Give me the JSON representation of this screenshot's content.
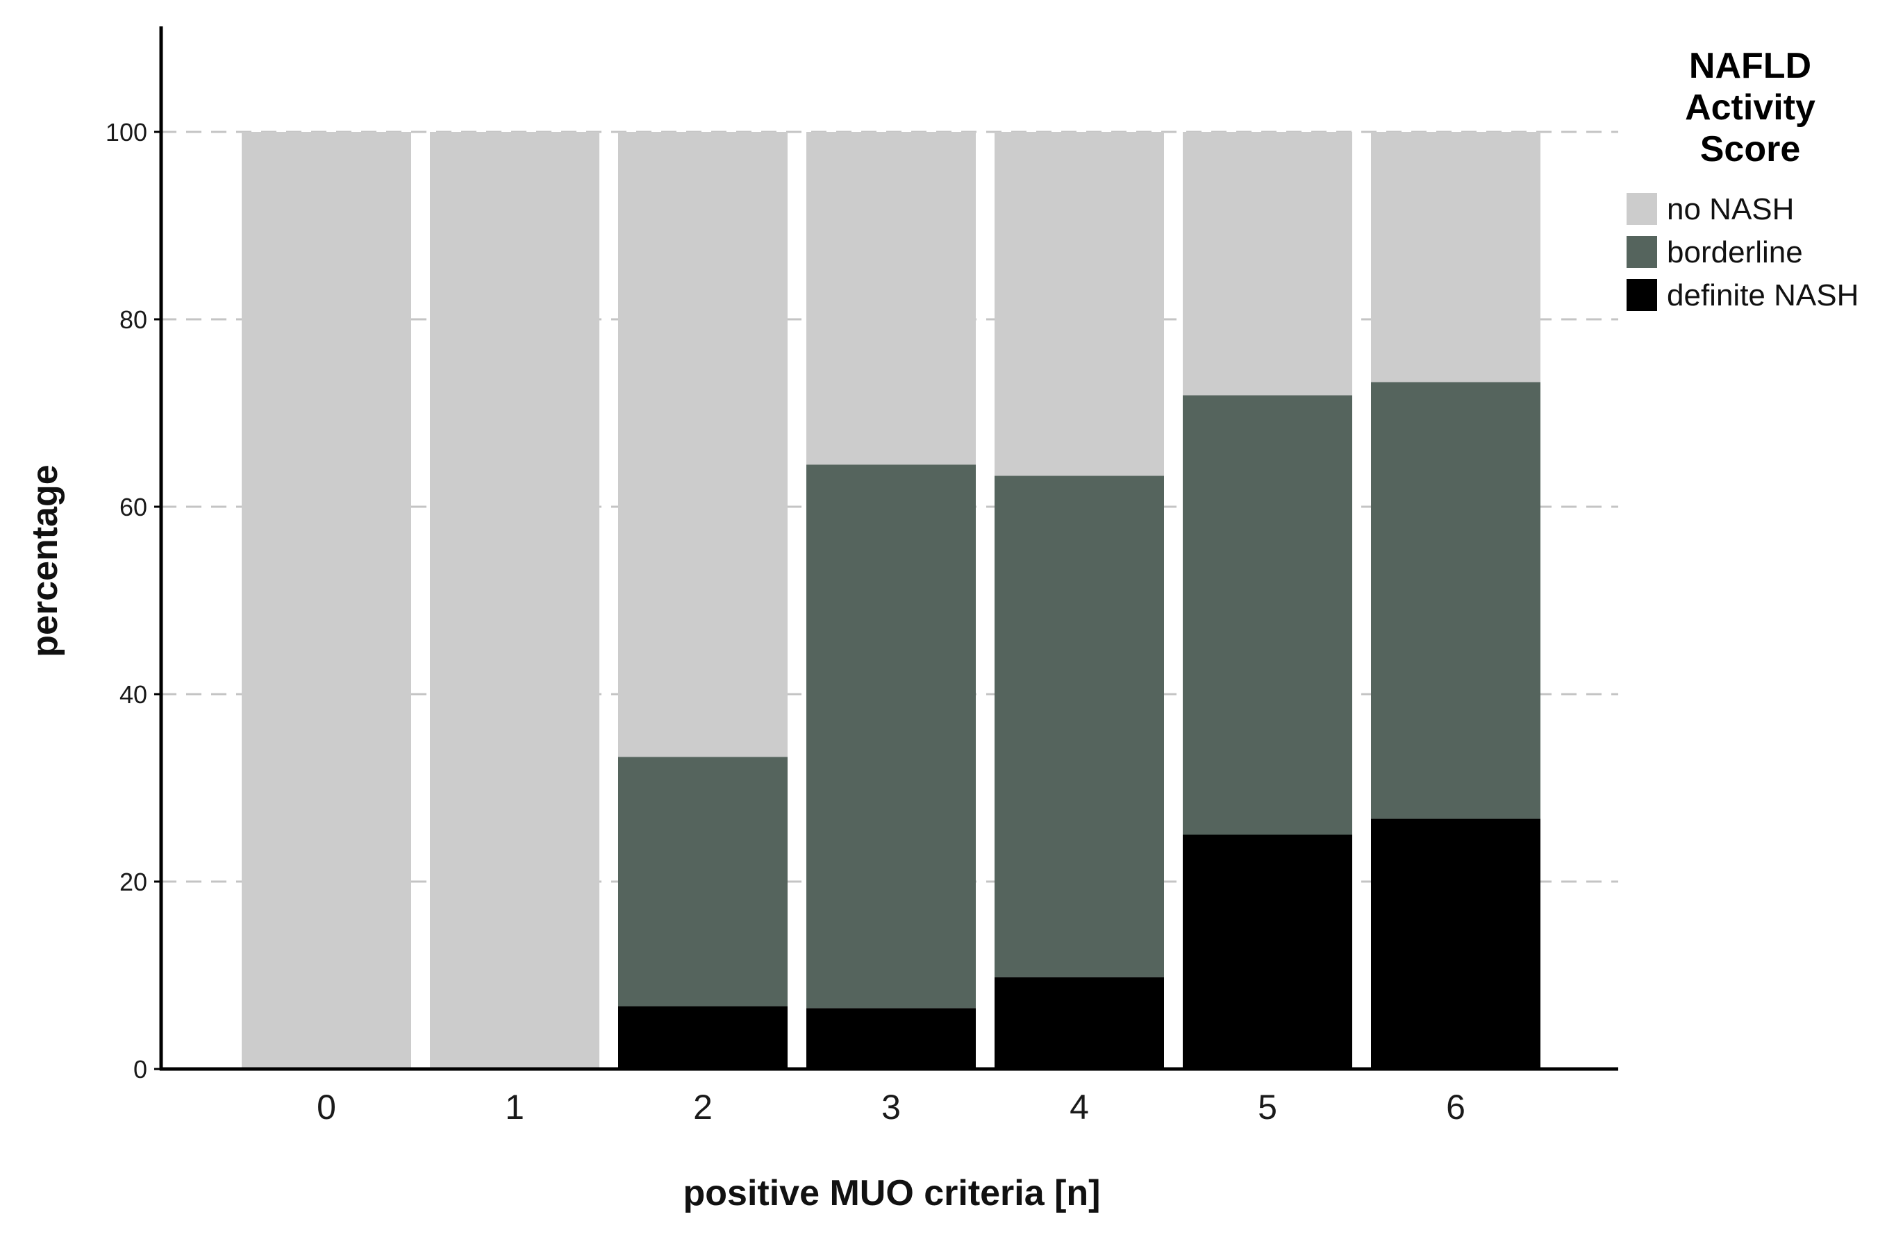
{
  "chart_data": {
    "type": "bar",
    "stacked": true,
    "xlabel": "positive MUO criteria [n]",
    "ylabel": "percentage",
    "categories": [
      "0",
      "1",
      "2",
      "3",
      "4",
      "5",
      "6"
    ],
    "ylim": [
      0,
      100
    ],
    "yticks": [
      "0",
      "20",
      "40",
      "60",
      "80",
      "100"
    ],
    "grid": "horizontal dashed",
    "legend": {
      "title_lines": [
        "NAFLD",
        "Activity",
        "Score"
      ],
      "placement": "top-right outside"
    },
    "series": [
      {
        "name": "definite NASH",
        "color": "#000000",
        "values": [
          0,
          0,
          6.7,
          6.5,
          9.8,
          25.0,
          26.7
        ]
      },
      {
        "name": "borderline",
        "color": "#55645d",
        "values": [
          0,
          0,
          26.6,
          58.0,
          53.5,
          46.9,
          46.6
        ]
      },
      {
        "name": "no NASH",
        "color": "#cccccc",
        "values": [
          100,
          100,
          66.7,
          35.5,
          36.7,
          28.1,
          26.7
        ]
      }
    ]
  }
}
